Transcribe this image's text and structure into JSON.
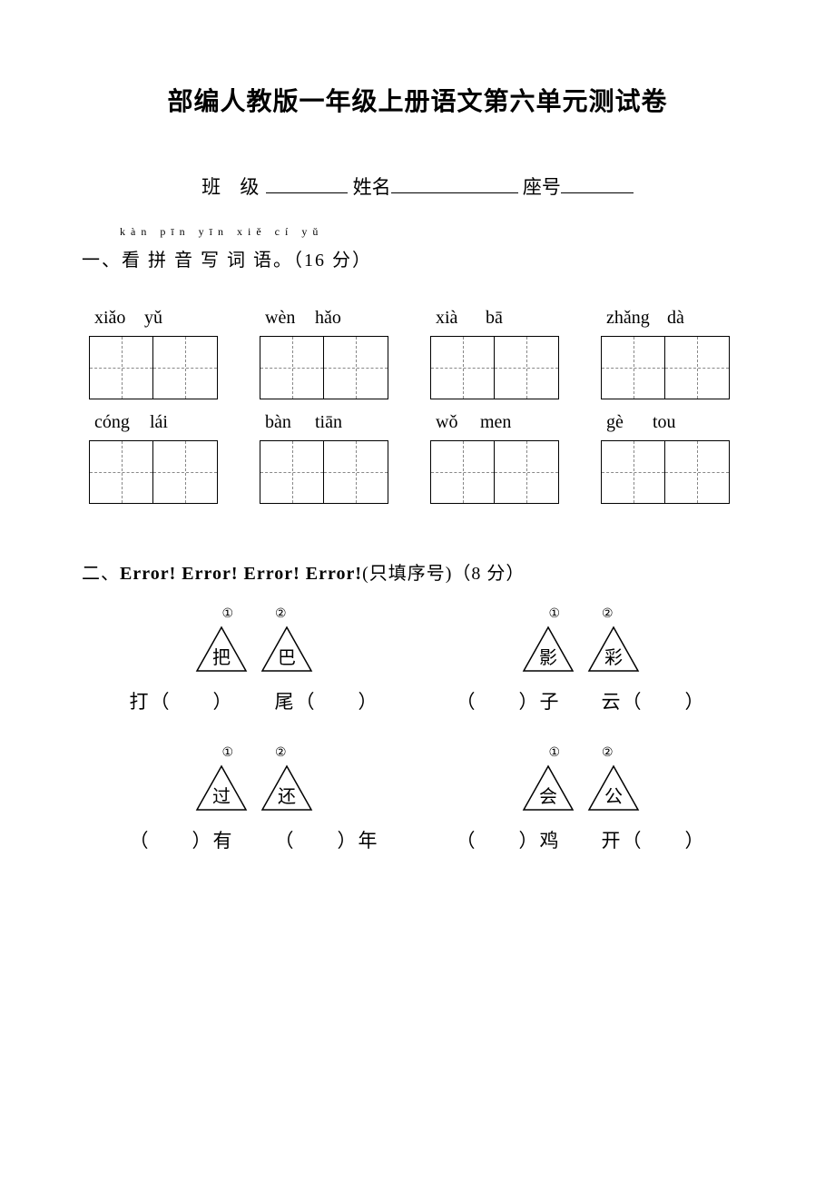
{
  "title": "部编人教版一年级上册语文第六单元测试卷",
  "info": {
    "class_label": "班 级",
    "name_label": "姓名",
    "seat_label": "座号"
  },
  "section1": {
    "ruby": "kàn pīn yīn xiě cí yǔ",
    "heading": "一、看 拼 音 写 词 语。（16 分）",
    "rows": [
      [
        {
          "p1": "xiǎo",
          "p2": "yǔ",
          "w1": 50,
          "w2": 40
        },
        {
          "p1": "wèn",
          "p2": "hǎo",
          "w1": 50,
          "w2": 40
        },
        {
          "p1": "xià",
          "p2": "bā",
          "w1": 50,
          "w2": 40
        },
        {
          "p1": "zhǎng",
          "p2": "dà",
          "w1": 62,
          "w2": 30
        }
      ],
      [
        {
          "p1": "cóng",
          "p2": "lái",
          "w1": 56,
          "w2": 40
        },
        {
          "p1": "bàn",
          "p2": "tiān",
          "w1": 50,
          "w2": 48
        },
        {
          "p1": "wǒ",
          "p2": "men",
          "w1": 44,
          "w2": 40
        },
        {
          "p1": "gè",
          "p2": "tou",
          "w1": 46,
          "w2": 40
        }
      ]
    ]
  },
  "section2": {
    "heading_pre": "二、",
    "heading_err": "Error! Error! Error! Error!",
    "heading_post": "(只填序号)（8 分）",
    "num1": "①",
    "num2": "②",
    "groups": [
      {
        "left": {
          "t1": "把",
          "t2": "巴",
          "w1": "打（　　）",
          "w2": "尾（　　）"
        },
        "right": {
          "t1": "影",
          "t2": "彩",
          "w1": "（　　）子",
          "w2": "云（　　）"
        }
      },
      {
        "left": {
          "t1": "过",
          "t2": "还",
          "w1": "（　　）有",
          "w2": "（　　）年"
        },
        "right": {
          "t1": "会",
          "t2": "公",
          "w1": "（　　）鸡",
          "w2": "开（　　）"
        }
      }
    ]
  },
  "colors": {
    "text": "#000000",
    "bg": "#ffffff",
    "dash": "#888888"
  }
}
